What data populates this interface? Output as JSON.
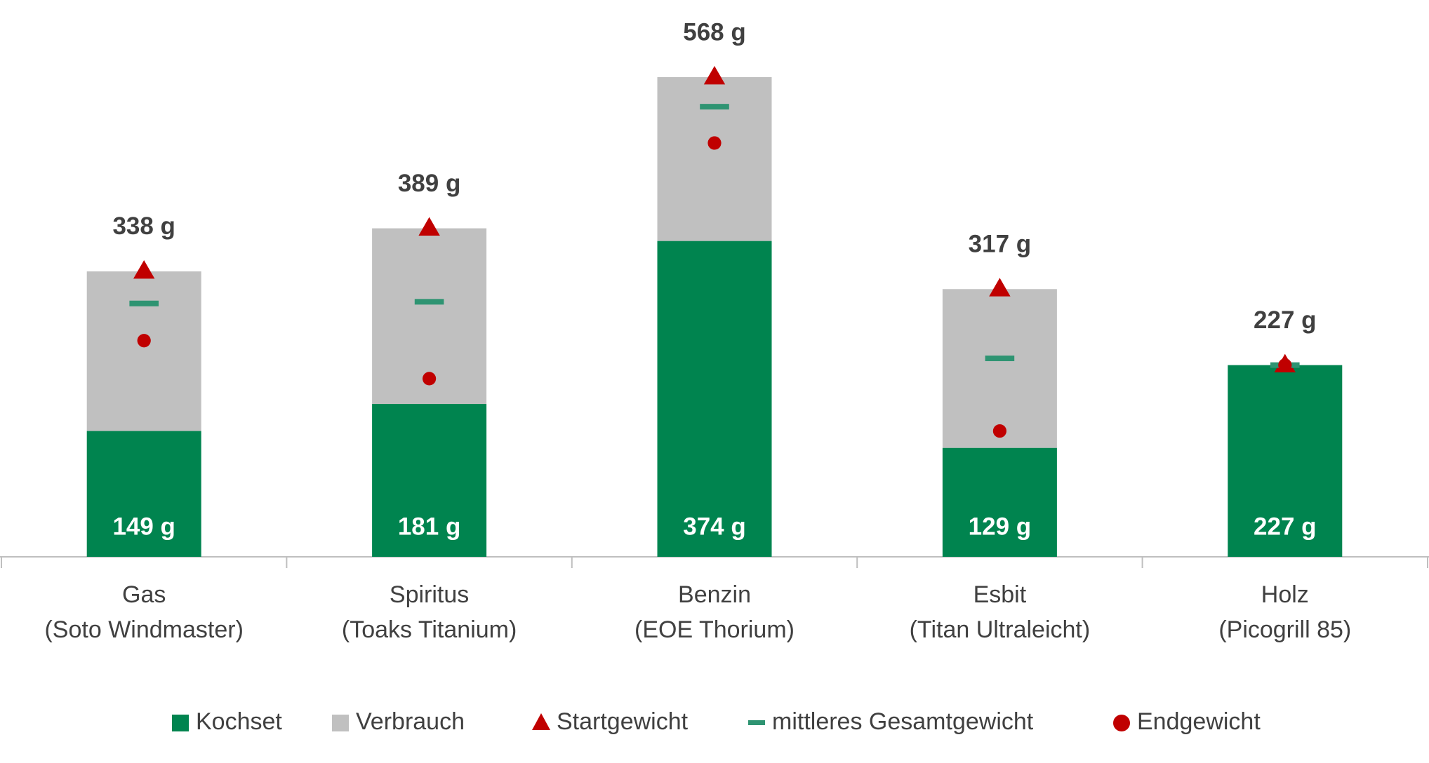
{
  "chart_data": {
    "type": "bar",
    "stacked": true,
    "categories": [
      [
        "Gas",
        "(Soto Windmaster)"
      ],
      [
        "Spiritus",
        "(Toaks Titanium)"
      ],
      [
        "Benzin",
        "(EOE Thorium)"
      ],
      [
        "Esbit",
        "(Titan Ultraleicht)"
      ],
      [
        "Holz",
        "(Picogrill 85)"
      ]
    ],
    "series": [
      {
        "name": "Kochset",
        "color": "#00844f",
        "values": [
          149,
          181,
          374,
          129,
          227
        ],
        "value_labels": [
          "149 g",
          "181 g",
          "374 g",
          "129 g",
          "227 g"
        ]
      },
      {
        "name": "Verbrauch",
        "color": "#c0c0c0",
        "values": [
          189,
          208,
          194,
          188,
          0
        ]
      },
      {
        "name": "Startgewicht",
        "color": "#c00000",
        "marker": "triangle",
        "values": [
          338,
          389,
          568,
          317,
          227
        ],
        "value_labels": [
          "338 g",
          "389 g",
          "568 g",
          "317 g",
          "227 g"
        ]
      },
      {
        "name": "mittleres Gesamtgewicht",
        "color": "#2e9472",
        "marker": "dash",
        "values": [
          300,
          302,
          533,
          235,
          227
        ]
      },
      {
        "name": "Endgewicht",
        "color": "#c00000",
        "marker": "circle",
        "values": [
          256,
          211,
          490,
          149,
          227
        ]
      }
    ],
    "legend": "bottom"
  }
}
